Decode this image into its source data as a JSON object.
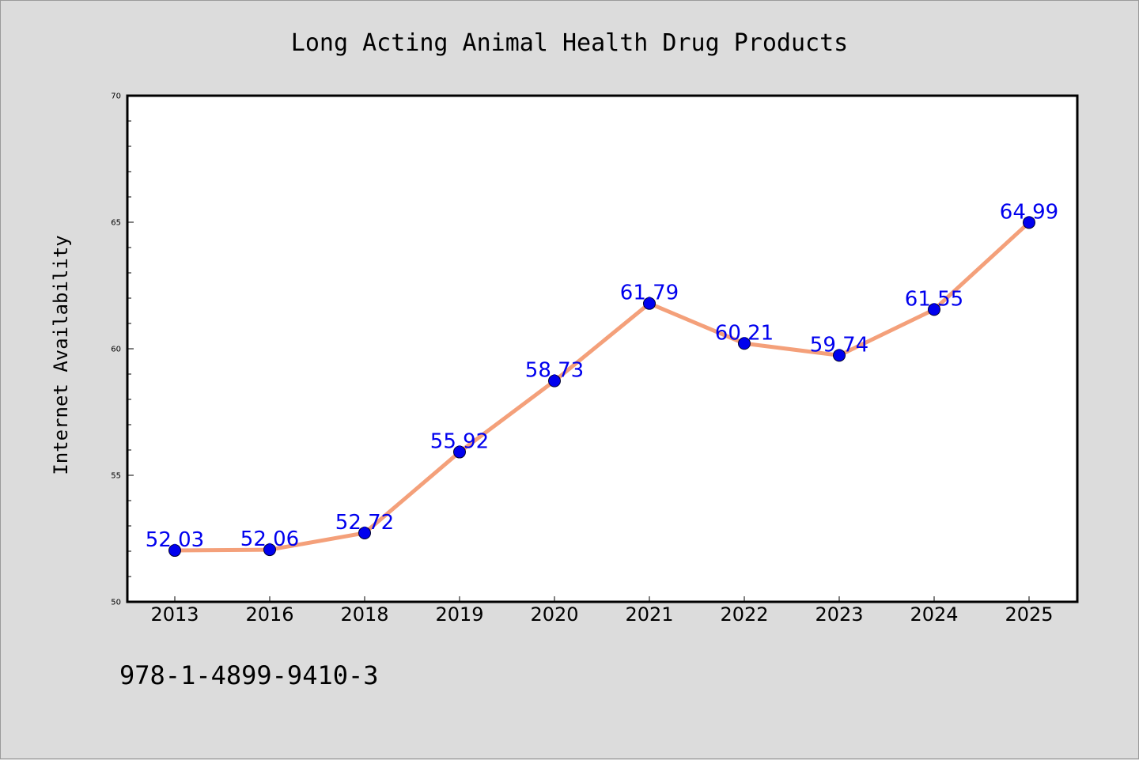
{
  "chart_data": {
    "type": "line",
    "title": "Long Acting Animal Health Drug Products",
    "xlabel": "",
    "ylabel": "Internet Availability",
    "categories": [
      "2013",
      "2016",
      "2018",
      "2019",
      "2020",
      "2021",
      "2022",
      "2023",
      "2024",
      "2025"
    ],
    "series": [
      {
        "values": [
          52.03,
          52.06,
          52.72,
          55.92,
          58.73,
          61.79,
          60.21,
          59.74,
          61.55,
          64.99
        ]
      }
    ],
    "data_labels": [
      "52.03",
      "52.06",
      "52.72",
      "55.92",
      "58.73",
      "61.79",
      "60.21",
      "59.74",
      "61.55",
      "64.99"
    ],
    "ylim": [
      50,
      70
    ],
    "yticks": [
      "50",
      "55",
      "60",
      "65",
      "70"
    ],
    "grid": false,
    "legend": "none",
    "colors": {
      "line": "#f4a07a",
      "marker": "#0000ee",
      "label": "#0000ee",
      "plot_bg": "#ffffff",
      "figure_bg": "#dcdcdc"
    }
  },
  "footer": {
    "isbn": "978-1-4899-9410-3"
  }
}
